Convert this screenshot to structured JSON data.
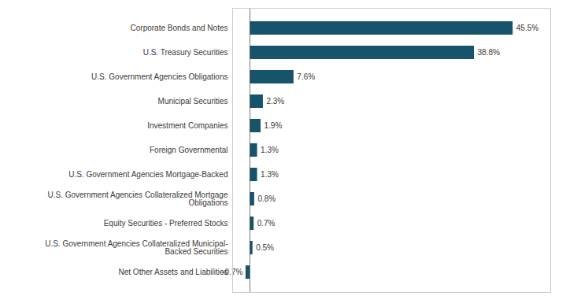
{
  "chart_data": {
    "type": "bar",
    "orientation": "horizontal",
    "categories": [
      "Net Other Assets and Liabilities",
      "U.S. Government Agencies Collateralized Municipal-\nBacked Securities",
      "Equity Securities - Preferred Stocks",
      "U.S. Government Agencies Collateralized Mortgage\nObligations",
      "U.S. Government Agencies Mortgage-Backed",
      "Foreign Governmental",
      "Investment Companies",
      "Municipal Securities",
      "U.S. Government Agencies Obligations",
      "U.S. Treasury Securities",
      "Corporate Bonds and Notes"
    ],
    "values": [
      -0.7,
      0.5,
      0.7,
      0.8,
      1.3,
      1.3,
      1.9,
      2.3,
      7.6,
      38.8,
      45.5
    ],
    "value_labels": [
      "-0.7%",
      "0.5%",
      "0.7%",
      "0.8%",
      "1.3%",
      "1.3%",
      "1.9%",
      "2.3%",
      "7.6%",
      "38.8%",
      "45.5%"
    ],
    "data_labels": true,
    "color": "#17536b",
    "xlim": [
      -3,
      52
    ],
    "grid": false,
    "tick_labels": "y"
  }
}
